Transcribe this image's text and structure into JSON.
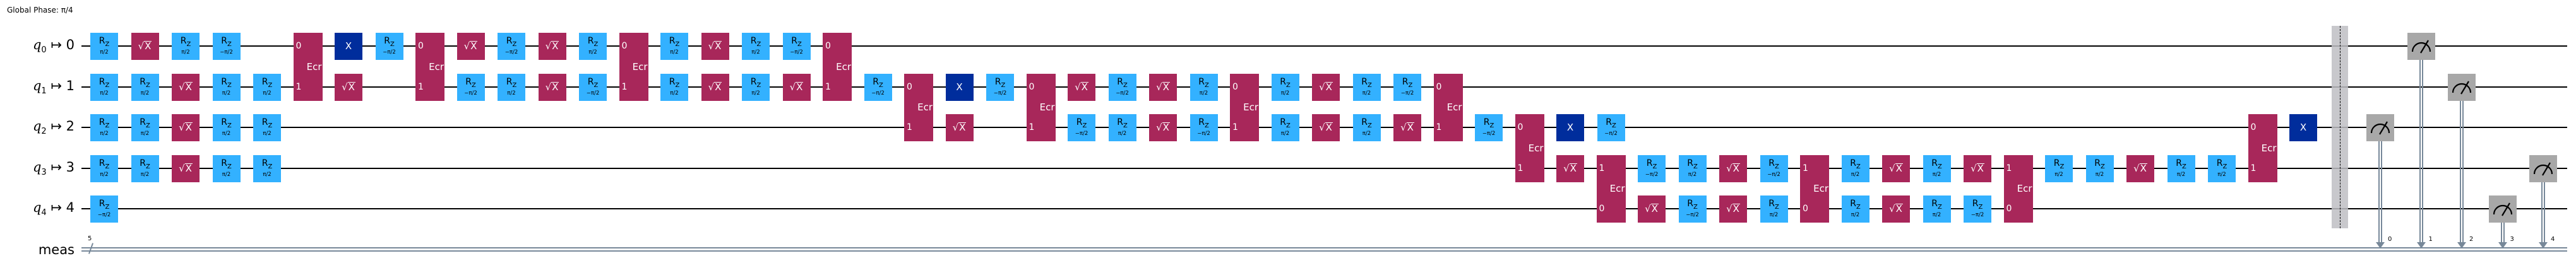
{
  "global_phase": "Global Phase: π/4",
  "qubits": [
    {
      "name": "q",
      "index": "0",
      "arrow": "↦",
      "physical": "0"
    },
    {
      "name": "q",
      "index": "1",
      "arrow": "↦",
      "physical": "1"
    },
    {
      "name": "q",
      "index": "2",
      "arrow": "↦",
      "physical": "2"
    },
    {
      "name": "q",
      "index": "3",
      "arrow": "↦",
      "physical": "3"
    },
    {
      "name": "q",
      "index": "4",
      "arrow": "↦",
      "physical": "4"
    }
  ],
  "classical": {
    "name": "meas",
    "size": "5"
  },
  "colors": {
    "rz": "#33b1ff",
    "sx": "#a8275a",
    "x": "#002d9c",
    "ecr": "#a8275a",
    "measure": "#a8a8a8",
    "classical": "#778899"
  },
  "layers": [
    [
      {
        "g": "Rz",
        "q": 0,
        "p": "π/2"
      },
      {
        "g": "Rz",
        "q": 1,
        "p": "π/2"
      },
      {
        "g": "Rz",
        "q": 2,
        "p": "π/2"
      },
      {
        "g": "Rz",
        "q": 3,
        "p": "π/2"
      },
      {
        "g": "Rz",
        "q": 4,
        "p": "−π/2"
      }
    ],
    [
      {
        "g": "√X",
        "q": 0
      },
      {
        "g": "Rz",
        "q": 1,
        "p": "π/2"
      },
      {
        "g": "Rz",
        "q": 2,
        "p": "π/2"
      },
      {
        "g": "Rz",
        "q": 3,
        "p": "π/2"
      }
    ],
    [
      {
        "g": "Rz",
        "q": 0,
        "p": "π/2"
      },
      {
        "g": "√X",
        "q": 1
      },
      {
        "g": "√X",
        "q": 2
      },
      {
        "g": "√X",
        "q": 3
      }
    ],
    [
      {
        "g": "Rz",
        "q": 0,
        "p": "−π/2"
      },
      {
        "g": "Rz",
        "q": 1,
        "p": "π/2"
      },
      {
        "g": "Rz",
        "q": 2,
        "p": "π/2"
      },
      {
        "g": "Rz",
        "q": 3,
        "p": "π/2"
      }
    ],
    [
      {
        "g": "Rz",
        "q": 1,
        "p": "π/2"
      },
      {
        "g": "Rz",
        "q": 2,
        "p": "π/2"
      },
      {
        "g": "Rz",
        "q": 3,
        "p": "π/2"
      }
    ],
    [
      {
        "g": "Ecr",
        "qs": [
          0,
          1
        ]
      }
    ],
    [
      {
        "g": "X",
        "q": 0
      },
      {
        "g": "√X",
        "q": 1
      }
    ],
    [
      {
        "g": "Rz",
        "q": 0,
        "p": "−π/2"
      }
    ],
    [
      {
        "g": "Ecr",
        "qs": [
          0,
          1
        ]
      }
    ],
    [
      {
        "g": "√X",
        "q": 0
      },
      {
        "g": "Rz",
        "q": 1,
        "p": "−π/2"
      }
    ],
    [
      {
        "g": "Rz",
        "q": 0,
        "p": "−π/2"
      },
      {
        "g": "Rz",
        "q": 1,
        "p": "π/2"
      }
    ],
    [
      {
        "g": "√X",
        "q": 0
      },
      {
        "g": "√X",
        "q": 1
      }
    ],
    [
      {
        "g": "Rz",
        "q": 0,
        "p": "π/2"
      },
      {
        "g": "Rz",
        "q": 1,
        "p": "−π/2"
      }
    ],
    [
      {
        "g": "Ecr",
        "qs": [
          0,
          1
        ]
      }
    ],
    [
      {
        "g": "Rz",
        "q": 0,
        "p": "π/2"
      },
      {
        "g": "Rz",
        "q": 1,
        "p": "π/2"
      }
    ],
    [
      {
        "g": "√X",
        "q": 0
      },
      {
        "g": "√X",
        "q": 1
      }
    ],
    [
      {
        "g": "Rz",
        "q": 0,
        "p": "π/2"
      },
      {
        "g": "Rz",
        "q": 1,
        "p": "π/2"
      }
    ],
    [
      {
        "g": "Rz",
        "q": 0,
        "p": "−π/2"
      },
      {
        "g": "√X",
        "q": 1
      }
    ],
    [
      {
        "g": "Ecr",
        "qs": [
          0,
          1
        ]
      }
    ],
    [
      {
        "g": "Rz",
        "q": 1,
        "p": "−π/2"
      }
    ],
    [
      {
        "g": "Ecr",
        "qs": [
          1,
          2
        ]
      }
    ],
    [
      {
        "g": "X",
        "q": 1
      },
      {
        "g": "√X",
        "q": 2
      }
    ],
    [
      {
        "g": "Rz",
        "q": 1,
        "p": "−π/2"
      }
    ],
    [
      {
        "g": "Ecr",
        "qs": [
          1,
          2
        ]
      }
    ],
    [
      {
        "g": "√X",
        "q": 1
      },
      {
        "g": "Rz",
        "q": 2,
        "p": "−π/2"
      }
    ],
    [
      {
        "g": "Rz",
        "q": 1,
        "p": "−π/2"
      },
      {
        "g": "Rz",
        "q": 2,
        "p": "π/2"
      }
    ],
    [
      {
        "g": "√X",
        "q": 1
      },
      {
        "g": "√X",
        "q": 2
      }
    ],
    [
      {
        "g": "Rz",
        "q": 1,
        "p": "π/2"
      },
      {
        "g": "Rz",
        "q": 2,
        "p": "−π/2"
      }
    ],
    [
      {
        "g": "Ecr",
        "qs": [
          1,
          2
        ]
      }
    ],
    [
      {
        "g": "Rz",
        "q": 1,
        "p": "π/2"
      },
      {
        "g": "Rz",
        "q": 2,
        "p": "π/2"
      }
    ],
    [
      {
        "g": "√X",
        "q": 1
      },
      {
        "g": "√X",
        "q": 2
      }
    ],
    [
      {
        "g": "Rz",
        "q": 1,
        "p": "π/2"
      },
      {
        "g": "Rz",
        "q": 2,
        "p": "π/2"
      }
    ],
    [
      {
        "g": "Rz",
        "q": 1,
        "p": "−π/2"
      },
      {
        "g": "√X",
        "q": 2
      }
    ],
    [
      {
        "g": "Ecr",
        "qs": [
          1,
          2
        ]
      }
    ],
    [
      {
        "g": "Rz",
        "q": 2,
        "p": "−π/2"
      }
    ],
    [
      {
        "g": "Ecr",
        "qs": [
          2,
          3
        ]
      }
    ],
    [
      {
        "g": "X",
        "q": 2
      },
      {
        "g": "√X",
        "q": 3
      }
    ],
    [
      {
        "g": "Rz",
        "q": 2,
        "p": "−π/2"
      },
      {
        "g": "Ecr",
        "qs": [
          4,
          3
        ]
      }
    ],
    [
      {
        "g": "Rz",
        "q": 3,
        "p": "−π/2"
      },
      {
        "g": "√X",
        "q": 4
      }
    ],
    [
      {
        "g": "Rz",
        "q": 3,
        "p": "π/2"
      },
      {
        "g": "Rz",
        "q": 4,
        "p": "−π/2"
      }
    ],
    [
      {
        "g": "√X",
        "q": 3
      },
      {
        "g": "√X",
        "q": 4
      }
    ],
    [
      {
        "g": "Rz",
        "q": 3,
        "p": "−π/2"
      },
      {
        "g": "Rz",
        "q": 4,
        "p": "π/2"
      }
    ],
    [
      {
        "g": "Ecr",
        "qs": [
          4,
          3
        ]
      }
    ],
    [
      {
        "g": "Rz",
        "q": 3,
        "p": "π/2"
      },
      {
        "g": "Rz",
        "q": 4,
        "p": "π/2"
      }
    ],
    [
      {
        "g": "√X",
        "q": 3
      },
      {
        "g": "√X",
        "q": 4
      }
    ],
    [
      {
        "g": "Rz",
        "q": 3,
        "p": "π/2"
      },
      {
        "g": "Rz",
        "q": 4,
        "p": "π/2"
      }
    ],
    [
      {
        "g": "√X",
        "q": 3
      },
      {
        "g": "Rz",
        "q": 4,
        "p": "−π/2"
      }
    ],
    [
      {
        "g": "Ecr",
        "qs": [
          4,
          3
        ]
      }
    ],
    [
      {
        "g": "Rz",
        "q": 3,
        "p": "π/2"
      }
    ],
    [
      {
        "g": "Rz",
        "q": 3,
        "p": "π/2"
      }
    ],
    [
      {
        "g": "√X",
        "q": 3
      }
    ],
    [
      {
        "g": "Rz",
        "q": 3,
        "p": "π/2"
      }
    ],
    [
      {
        "g": "Rz",
        "q": 3,
        "p": "π/2"
      }
    ],
    [
      {
        "g": "Ecr",
        "qs": [
          2,
          3
        ]
      }
    ],
    [
      {
        "g": "X",
        "q": 2
      }
    ]
  ],
  "ecr_port_labels": [
    "0",
    "1"
  ],
  "barrier": {
    "qubits": [
      0,
      1,
      2,
      3,
      4
    ]
  },
  "measurements": [
    {
      "q": 2,
      "clbit": "0"
    },
    {
      "q": 0,
      "clbit": "1"
    },
    {
      "q": 1,
      "clbit": "2"
    },
    {
      "q": 4,
      "clbit": "3"
    },
    {
      "q": 3,
      "clbit": "4"
    }
  ]
}
